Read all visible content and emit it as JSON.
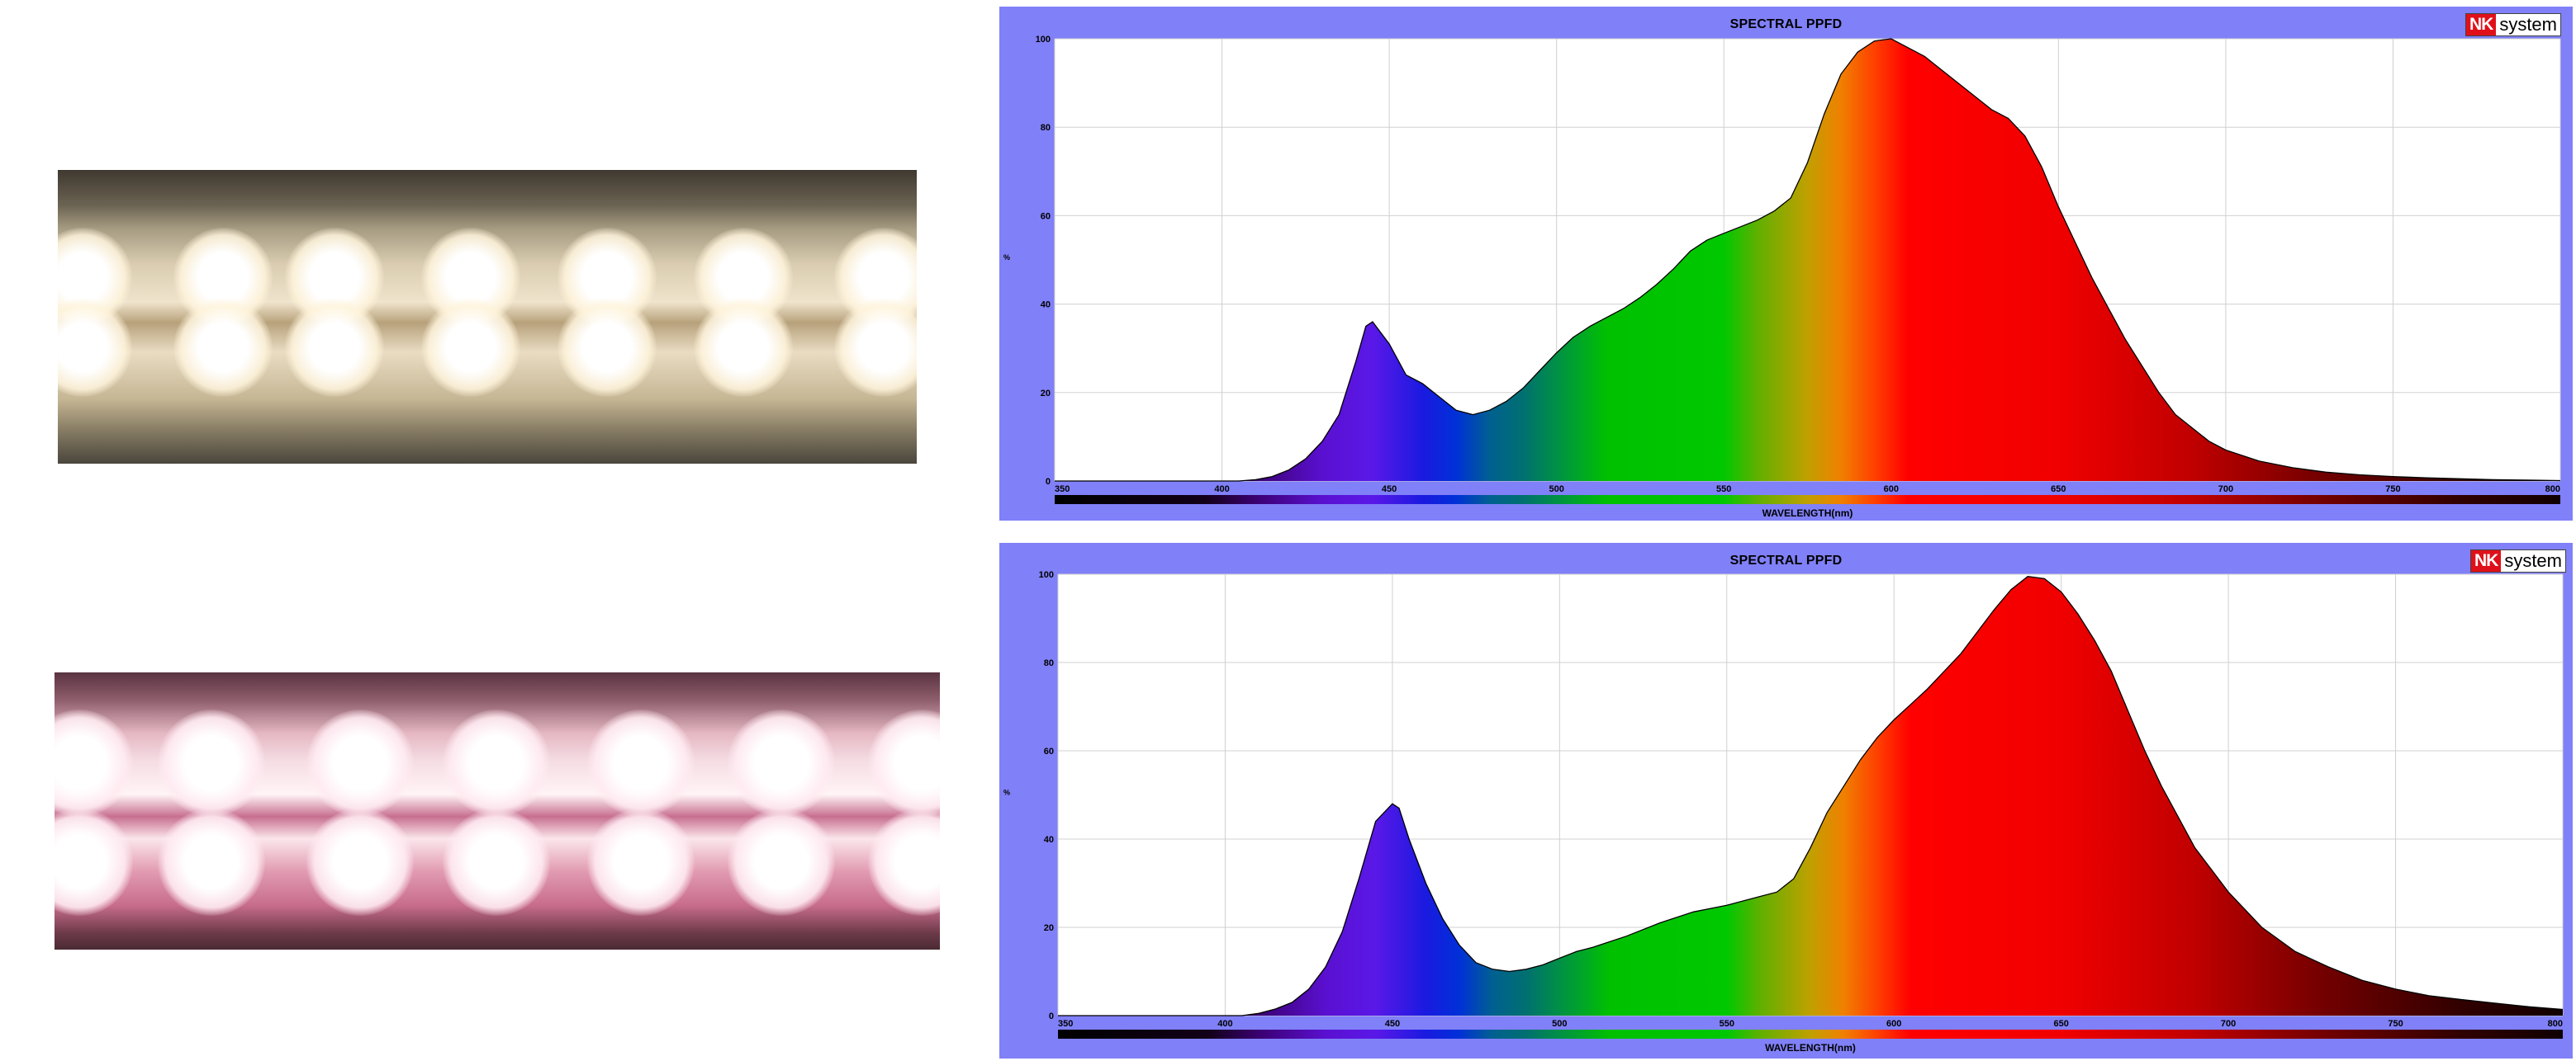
{
  "photos": [
    {
      "name": "warm-white-led-tube"
    },
    {
      "name": "pink-led-tube"
    }
  ],
  "chart_data": [
    {
      "type": "area",
      "title": "SPECTRAL PPFD",
      "logo": {
        "nk": "NK",
        "system": "system"
      },
      "xlabel": "WAVELENGTH(nm)",
      "ylabel": "%",
      "xlim": [
        350,
        800
      ],
      "ylim": [
        0,
        100
      ],
      "xticks": [
        350,
        400,
        450,
        500,
        550,
        600,
        650,
        700,
        750,
        800
      ],
      "yticks": [
        0,
        20,
        40,
        60,
        80,
        100
      ],
      "grid": true,
      "fill": "spectral-colors",
      "x": [
        350,
        400,
        405,
        410,
        415,
        420,
        425,
        430,
        435,
        440,
        443,
        445,
        450,
        455,
        460,
        465,
        470,
        475,
        480,
        485,
        490,
        495,
        500,
        505,
        510,
        515,
        520,
        525,
        530,
        535,
        540,
        545,
        550,
        555,
        560,
        565,
        570,
        575,
        580,
        585,
        590,
        595,
        600,
        605,
        610,
        615,
        620,
        625,
        630,
        635,
        640,
        645,
        650,
        655,
        660,
        665,
        670,
        675,
        680,
        685,
        690,
        695,
        700,
        710,
        720,
        730,
        740,
        750,
        760,
        770,
        780,
        790,
        800
      ],
      "y": [
        0,
        0,
        0,
        0.3,
        1,
        2.5,
        5,
        9,
        15,
        27,
        35,
        36,
        31,
        24,
        22,
        19,
        16,
        15,
        16,
        18,
        21,
        25,
        29,
        32.5,
        35,
        37,
        39,
        41.5,
        44.5,
        48,
        52,
        54.5,
        56,
        57.5,
        59,
        61,
        64,
        72,
        83,
        92,
        97,
        99.5,
        100,
        98,
        96,
        93,
        90,
        87,
        84,
        82,
        78,
        71,
        62,
        54,
        46,
        39,
        32,
        26,
        20,
        15,
        12,
        9,
        7,
        4.5,
        3,
        2,
        1.4,
        1,
        0.7,
        0.5,
        0.3,
        0.2,
        0.1
      ]
    },
    {
      "type": "area",
      "title": "SPECTRAL PPFD",
      "logo": {
        "nk": "NK",
        "system": "system"
      },
      "xlabel": "WAVELENGTH(nm)",
      "ylabel": "%",
      "xlim": [
        350,
        800
      ],
      "ylim": [
        0,
        100
      ],
      "xticks": [
        350,
        400,
        450,
        500,
        550,
        600,
        650,
        700,
        750,
        800
      ],
      "yticks": [
        0,
        20,
        40,
        60,
        80,
        100
      ],
      "grid": true,
      "fill": "spectral-colors",
      "x": [
        350,
        400,
        405,
        410,
        415,
        420,
        425,
        430,
        435,
        440,
        445,
        450,
        452,
        455,
        460,
        465,
        470,
        475,
        480,
        485,
        490,
        495,
        500,
        505,
        510,
        520,
        530,
        540,
        550,
        560,
        565,
        570,
        575,
        580,
        585,
        590,
        595,
        600,
        605,
        610,
        615,
        620,
        625,
        630,
        635,
        640,
        645,
        650,
        655,
        660,
        665,
        670,
        675,
        680,
        685,
        690,
        695,
        700,
        710,
        720,
        730,
        740,
        750,
        760,
        770,
        780,
        790,
        800
      ],
      "y": [
        0,
        0,
        0,
        0.5,
        1.5,
        3,
        6,
        11,
        19,
        31,
        44,
        48,
        47,
        40,
        30,
        22,
        16,
        12,
        10.5,
        10,
        10.5,
        11.5,
        13,
        14.5,
        15.5,
        18,
        21,
        23.5,
        25,
        27,
        28,
        31,
        38,
        46,
        52,
        58,
        63,
        67,
        70.5,
        74,
        78,
        82,
        87,
        92,
        96.5,
        99.5,
        99,
        96,
        91,
        85,
        78,
        69,
        60,
        52,
        45,
        38,
        33,
        28,
        20,
        14.5,
        11,
        8,
        6,
        4.5,
        3.6,
        2.8,
        2,
        1.4
      ]
    }
  ]
}
